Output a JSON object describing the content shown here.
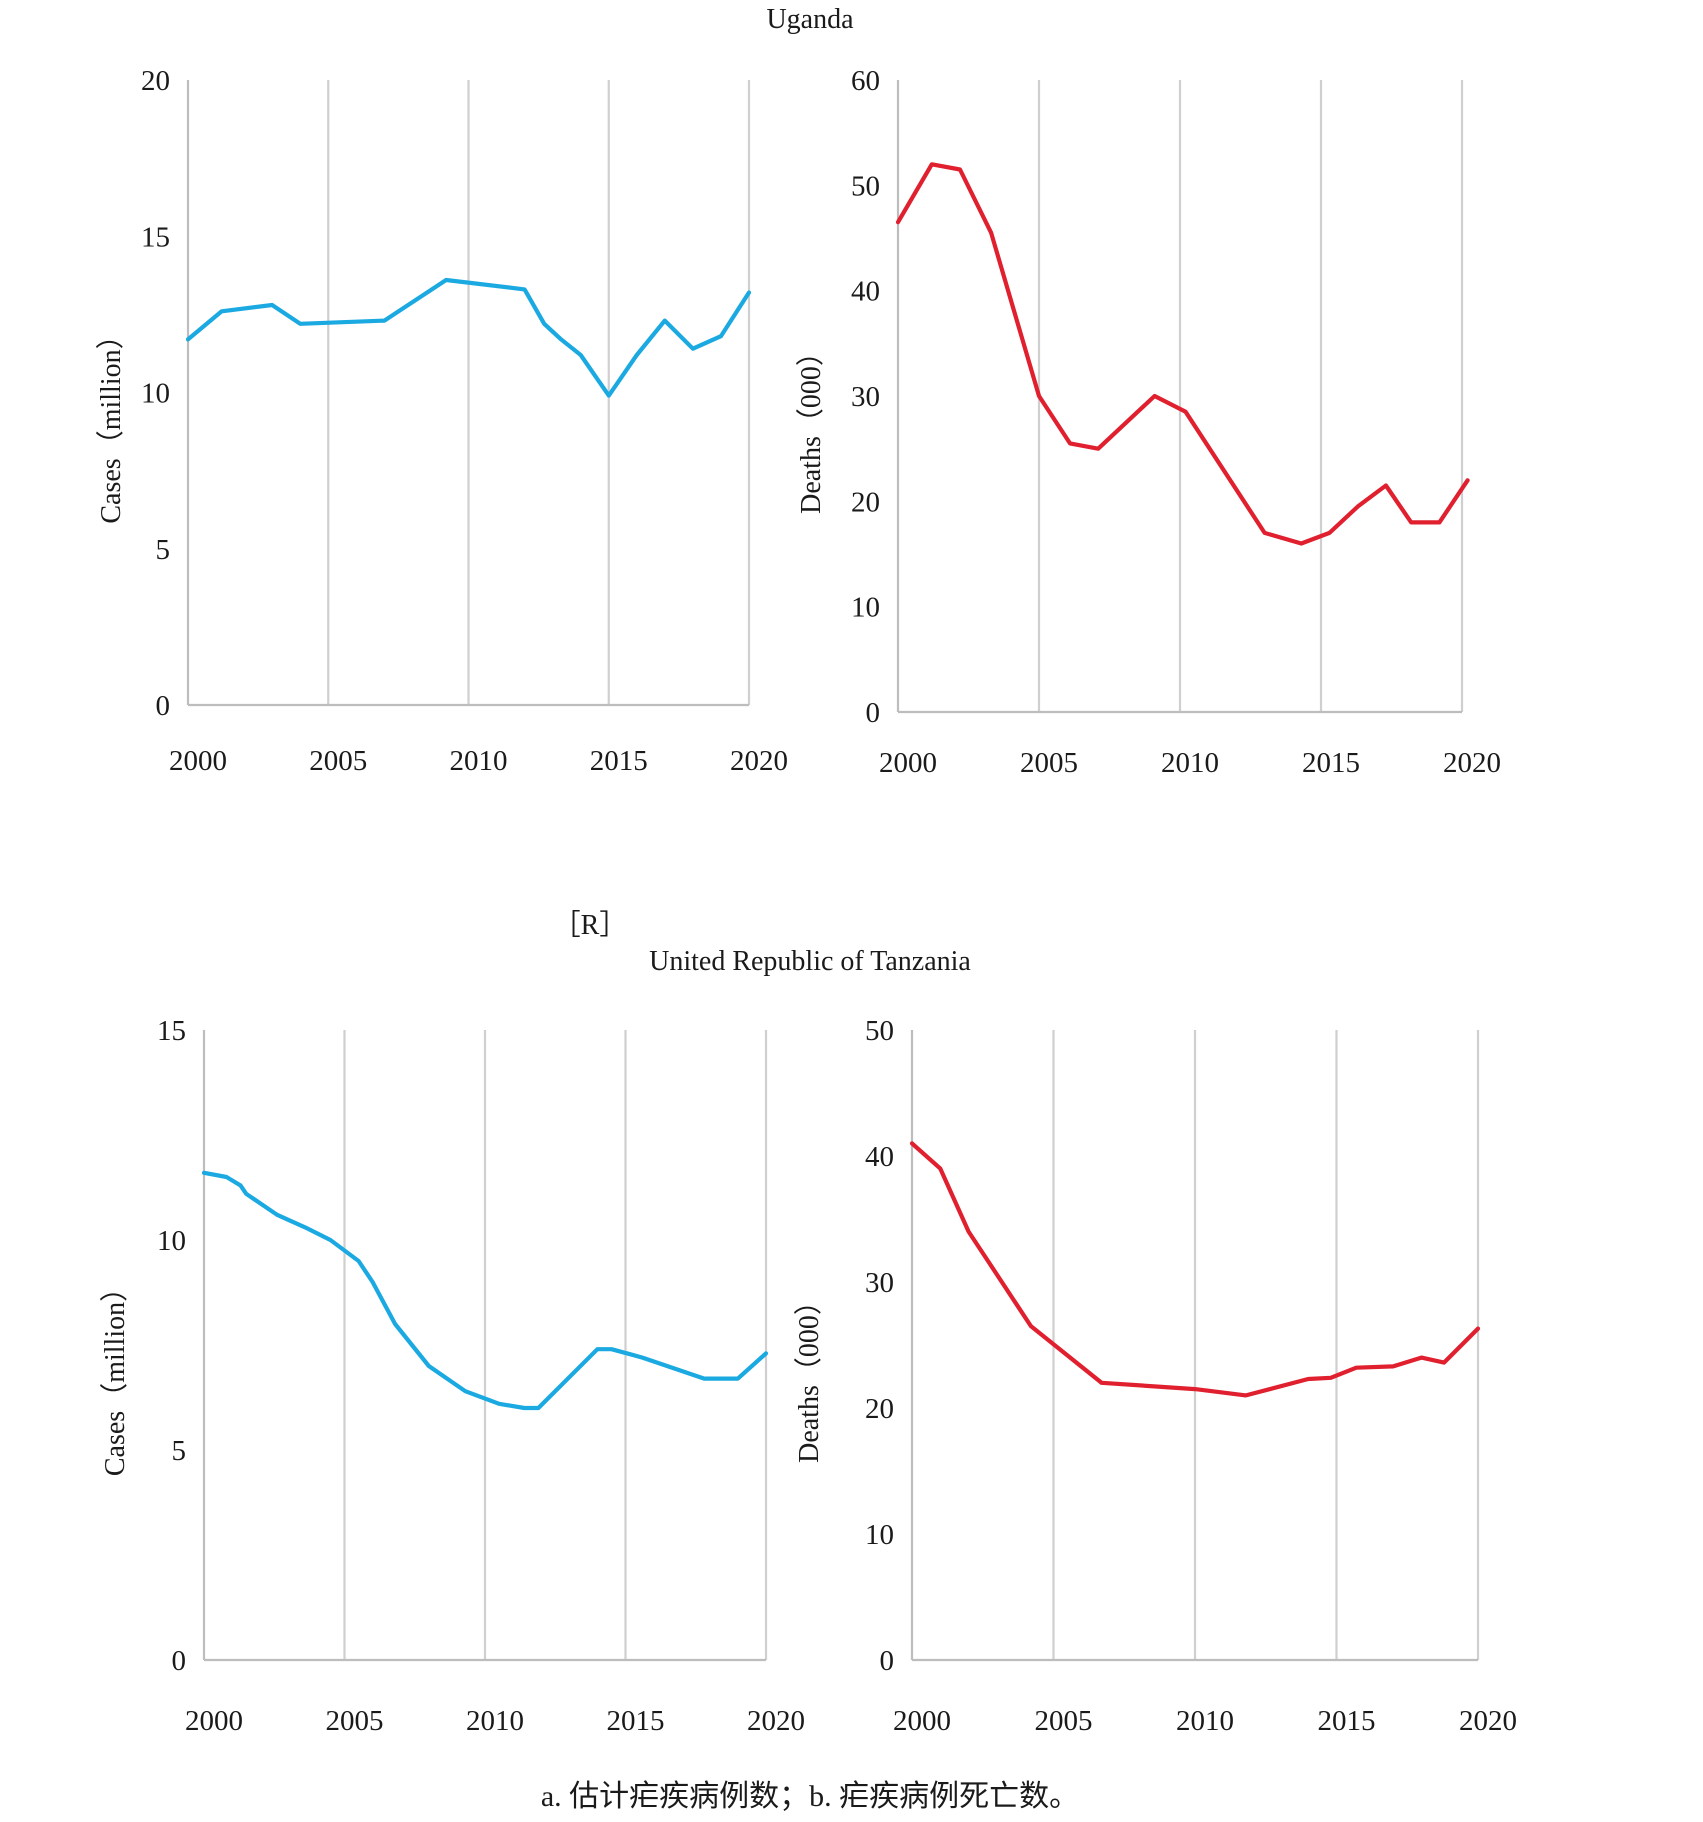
{
  "top_title": "Uganda",
  "marker": "［R］",
  "bottom_title": "United Republic of Tanzania",
  "caption": "a. 估计疟疾病例数；b. 疟疾病例死亡数。",
  "colors": {
    "cases": "#1ba9e1",
    "deaths": "#e0202e",
    "grid": "#cfcfcf"
  },
  "chart_data": [
    {
      "type": "line",
      "panel": "Uganda cases",
      "ylabel": "Cases（million）",
      "xlim": [
        2000,
        2020
      ],
      "ylim": [
        0,
        20
      ],
      "xticks": [
        2000,
        2005,
        2010,
        2015,
        2020
      ],
      "yticks": [
        0,
        5,
        10,
        15,
        20
      ],
      "series": [
        {
          "color": "#1ba9e1",
          "x": [
            2000,
            2001.2,
            2003,
            2004,
            2007,
            2009.2,
            2012,
            2012.7,
            2013.3,
            2014,
            2015,
            2016,
            2017,
            2018,
            2019,
            2020
          ],
          "y": [
            11.7,
            12.6,
            12.8,
            12.2,
            12.3,
            13.6,
            13.3,
            12.2,
            11.7,
            11.2,
            9.9,
            11.2,
            12.3,
            11.4,
            11.8,
            13.2
          ]
        }
      ]
    },
    {
      "type": "line",
      "panel": "Uganda deaths",
      "ylabel": "Deaths（000）",
      "xlim": [
        2000,
        2020
      ],
      "ylim": [
        0,
        60
      ],
      "xticks": [
        2000,
        2005,
        2010,
        2015,
        2020
      ],
      "yticks": [
        0,
        10,
        20,
        30,
        40,
        50,
        60
      ],
      "series": [
        {
          "color": "#e0202e",
          "x": [
            2000,
            2001.2,
            2002.2,
            2003.3,
            2005,
            2006.1,
            2007.1,
            2009.1,
            2010.2,
            2013,
            2014.3,
            2015.3,
            2016.3,
            2017.3,
            2018.2,
            2019.2,
            2020.2
          ],
          "y": [
            46.5,
            52.0,
            51.5,
            45.5,
            30.0,
            25.5,
            25.0,
            30.0,
            28.5,
            17.0,
            16.0,
            17.0,
            19.5,
            21.5,
            18.0,
            18.0,
            22.0
          ]
        }
      ]
    },
    {
      "type": "line",
      "panel": "Tanzania cases",
      "ylabel": "Cases（million）",
      "xlim": [
        2000,
        2020
      ],
      "ylim": [
        0,
        15
      ],
      "xticks": [
        2000,
        2005,
        2010,
        2015,
        2020
      ],
      "yticks": [
        0,
        5,
        10,
        15
      ],
      "series": [
        {
          "color": "#1ba9e1",
          "x": [
            2000,
            2000.8,
            2001.3,
            2001.5,
            2002.6,
            2003.6,
            2004.5,
            2005.5,
            2006,
            2006.8,
            2008,
            2009.3,
            2010.5,
            2011.4,
            2011.9,
            2014,
            2014.5,
            2015.6,
            2017.8,
            2019,
            2020
          ],
          "y": [
            11.6,
            11.5,
            11.3,
            11.1,
            10.6,
            10.3,
            10.0,
            9.5,
            9.0,
            8.0,
            7.0,
            6.4,
            6.1,
            6.0,
            6.0,
            7.4,
            7.4,
            7.2,
            6.7,
            6.7,
            7.3
          ]
        }
      ]
    },
    {
      "type": "line",
      "panel": "Tanzania deaths",
      "ylabel": "Deaths（000）",
      "xlim": [
        2000,
        2020
      ],
      "ylim": [
        0,
        50
      ],
      "xticks": [
        2000,
        2005,
        2010,
        2015,
        2020
      ],
      "yticks": [
        0,
        10,
        20,
        30,
        40,
        50
      ],
      "series": [
        {
          "color": "#e0202e",
          "x": [
            2000,
            2001,
            2002,
            2004.2,
            2006.7,
            2010,
            2011.8,
            2014,
            2014.8,
            2015.7,
            2017,
            2018,
            2018.8,
            2020
          ],
          "y": [
            41.0,
            39.0,
            34.0,
            26.5,
            22.0,
            21.5,
            21.0,
            22.3,
            22.4,
            23.2,
            23.3,
            24.0,
            23.6,
            26.3
          ]
        }
      ]
    }
  ]
}
